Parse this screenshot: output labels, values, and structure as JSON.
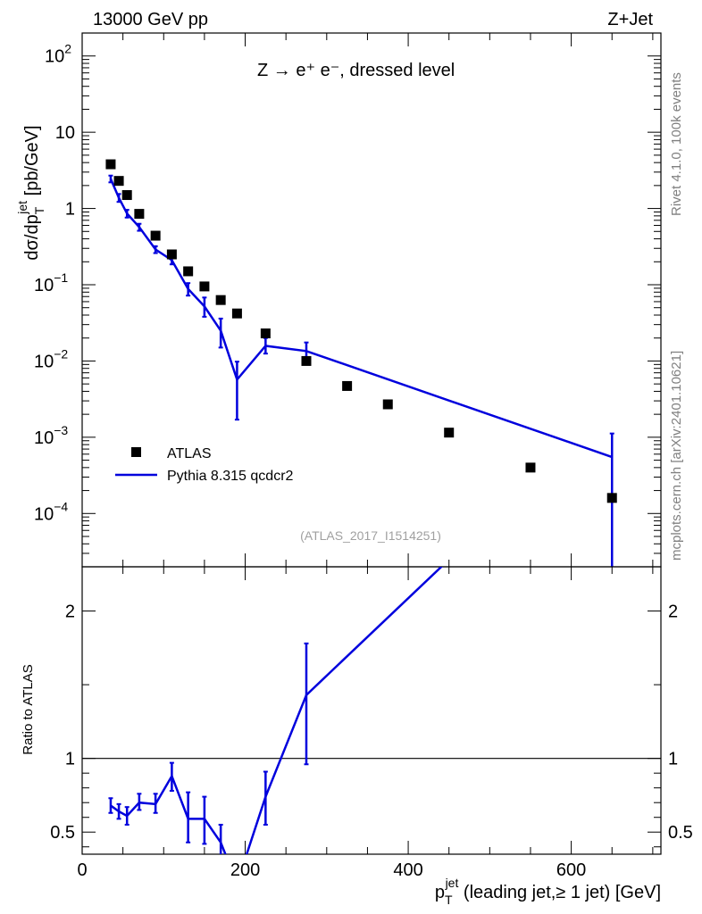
{
  "header": {
    "left": "13000 GeV pp",
    "right": "Z+Jet"
  },
  "side_labels": {
    "rivet": "Rivet 4.1.0,  100k events",
    "mcplots": "mcplots.cern.ch [arXiv:2401.10621]"
  },
  "process_label": "Z → e⁺ e⁻, dressed level",
  "analysis_id": "(ATLAS_2017_I1514251)",
  "colors": {
    "data": "#000000",
    "mc": "#0000dd",
    "axis": "#000000",
    "watermark": "#808080",
    "analysis": "#a0a0a0"
  },
  "chart_data": [
    {
      "type": "scatter",
      "panel": "main",
      "ylabel": "dσ/dp_T^jet [pb/GeV]",
      "ylabel_parts": {
        "main": "dσ/dp",
        "sub": "T",
        "sup": "jet",
        "unit": " [pb/GeV]"
      },
      "yscale": "log",
      "ylim": [
        2e-05,
        200
      ],
      "xlim": [
        0,
        710
      ],
      "yticks": [
        {
          "base": "10",
          "exp": "2",
          "value": 100
        },
        {
          "base": "10",
          "exp": "",
          "value": 10
        },
        {
          "base": "1",
          "exp": "",
          "value": 1
        },
        {
          "base": "10",
          "exp": "−1",
          "value": 0.1
        },
        {
          "base": "10",
          "exp": "−2",
          "value": 0.01
        },
        {
          "base": "10",
          "exp": "−3",
          "value": 0.001
        },
        {
          "base": "10",
          "exp": "−4",
          "value": 0.0001
        }
      ],
      "legend": {
        "position": "lower-left",
        "entries": [
          {
            "label": "ATLAS",
            "style": "marker"
          },
          {
            "label": "Pythia 8.315 qcdcr2",
            "style": "line"
          }
        ]
      },
      "series": [
        {
          "name": "ATLAS",
          "style": "marker",
          "x": [
            35,
            45,
            55,
            70,
            90,
            110,
            130,
            150,
            170,
            190,
            225,
            275,
            325,
            375,
            450,
            550,
            650
          ],
          "y": [
            3.8,
            2.3,
            1.5,
            0.85,
            0.44,
            0.25,
            0.15,
            0.095,
            0.063,
            0.042,
            0.023,
            0.01,
            0.0047,
            0.0027,
            0.00115,
            0.0004,
            0.00016
          ]
        },
        {
          "name": "Pythia 8.315 qcdcr2",
          "style": "line",
          "x": [
            35,
            45,
            55,
            70,
            90,
            110,
            130,
            150,
            170,
            190,
            225,
            275,
            650
          ],
          "y": [
            2.45,
            1.38,
            0.86,
            0.57,
            0.29,
            0.21,
            0.088,
            0.052,
            0.025,
            0.0057,
            0.0158,
            0.0135,
            0.00055
          ],
          "yerr_low": [
            2.2,
            1.22,
            0.76,
            0.51,
            0.26,
            0.185,
            0.072,
            0.038,
            0.015,
            0.0017,
            0.0125,
            0.0108,
            1e-06
          ],
          "yerr_high": [
            2.7,
            1.55,
            0.96,
            0.63,
            0.32,
            0.235,
            0.105,
            0.068,
            0.036,
            0.0098,
            0.02,
            0.0175,
            0.00112
          ]
        }
      ]
    },
    {
      "type": "line",
      "panel": "ratio",
      "ylabel": "Ratio to ATLAS",
      "xlabel": "p_T^jet (leading jet,≥ 1 jet) [GeV]",
      "xlabel_parts": {
        "main": "p",
        "sub": "T",
        "sup": "jet",
        "rest": " (leading jet,≥ 1 jet) [GeV]"
      },
      "ylim": [
        0.35,
        2.3
      ],
      "xlim": [
        0,
        710
      ],
      "xticks": [
        0,
        200,
        400,
        600
      ],
      "xtick_labels": [
        "0",
        "200",
        "400",
        "600"
      ],
      "yticks": [
        0.5,
        1,
        2
      ],
      "ytick_labels": [
        "0.5",
        "1",
        "2"
      ],
      "reference_line": 1,
      "series": [
        {
          "name": "Pythia 8.315 qcdcr2",
          "x": [
            35,
            45,
            55,
            70,
            90,
            110,
            130,
            150,
            170,
            190,
            225,
            275,
            650
          ],
          "y": [
            0.68,
            0.64,
            0.61,
            0.7,
            0.69,
            0.88,
            0.59,
            0.59,
            0.43,
            0.15,
            0.74,
            1.43,
            3.4
          ],
          "yerr_low": [
            0.63,
            0.59,
            0.55,
            0.65,
            0.63,
            0.78,
            0.43,
            0.42,
            0.27,
            0.05,
            0.55,
            0.96,
            3.0
          ],
          "yerr_high": [
            0.73,
            0.69,
            0.67,
            0.76,
            0.76,
            0.97,
            0.77,
            0.74,
            0.55,
            0.3,
            0.91,
            1.78,
            3.8
          ]
        }
      ]
    }
  ]
}
